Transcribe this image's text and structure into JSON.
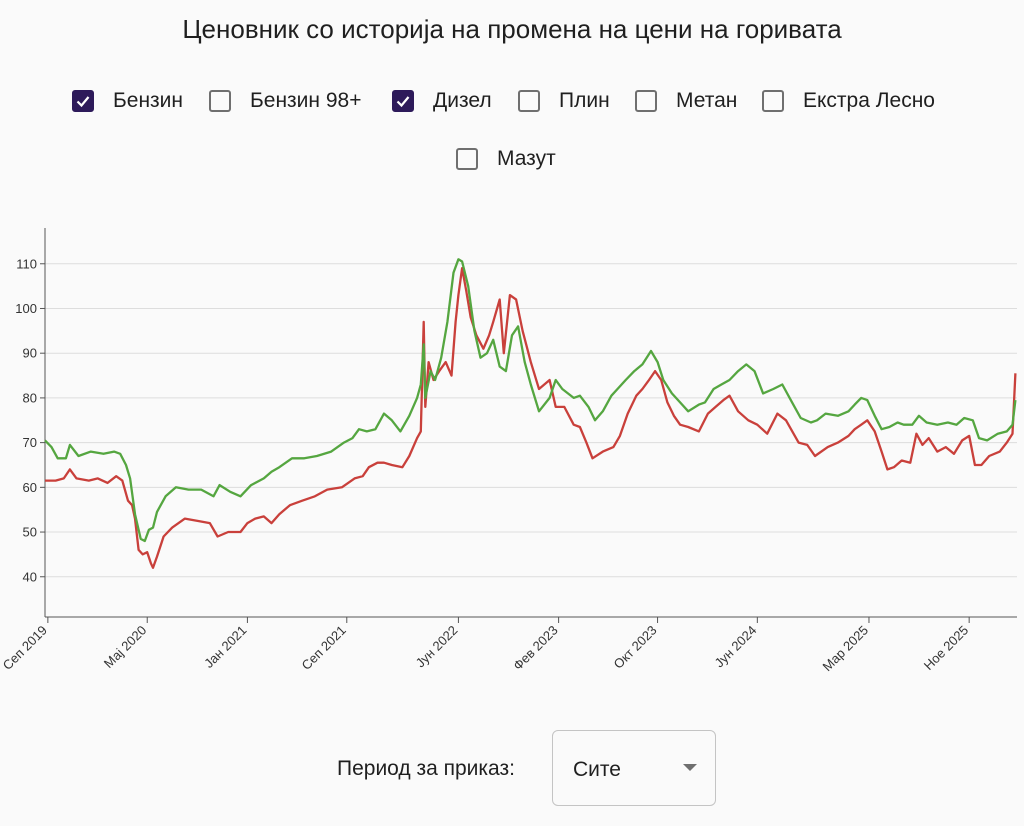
{
  "title": "Ценовник со историја на промена на цени на горивата",
  "filters": [
    {
      "label": "Бензин",
      "checked": true
    },
    {
      "label": "Бензин 98+",
      "checked": false
    },
    {
      "label": "Дизел",
      "checked": true
    },
    {
      "label": "Плин",
      "checked": false
    },
    {
      "label": "Метан",
      "checked": false
    },
    {
      "label": "Екстра Лесно",
      "checked": false
    },
    {
      "label": "Мазут",
      "checked": false
    }
  ],
  "period": {
    "label": "Период за приказ:",
    "selected": "Сите"
  },
  "colors": {
    "benzin": "#c9403b",
    "dizel": "#55a640",
    "checkbox_checked": "#2d1a5a"
  },
  "chart_data": {
    "type": "line",
    "title": "",
    "xlabel": "",
    "ylabel": "",
    "ylim": [
      31,
      118
    ],
    "yticks": [
      40,
      50,
      60,
      70,
      80,
      90,
      100,
      110
    ],
    "grid": "horizontal",
    "xtick_labels": [
      {
        "date": "2019-09-01",
        "label": "Сеп 2019"
      },
      {
        "date": "2020-05-01",
        "label": "Мај 2020"
      },
      {
        "date": "2021-01-01",
        "label": "Јан 2021"
      },
      {
        "date": "2021-09-01",
        "label": "Сеп 2021"
      },
      {
        "date": "2022-06-01",
        "label": "Јун 2022"
      },
      {
        "date": "2023-02-01",
        "label": "Фев 2023"
      },
      {
        "date": "2023-10-01",
        "label": "Окт 2023"
      },
      {
        "date": "2024-06-01",
        "label": "Јун 2024"
      },
      {
        "date": "2025-03-01",
        "label": "Мар 2025"
      },
      {
        "date": "2025-11-01",
        "label": "Ное 2025"
      }
    ],
    "series": [
      {
        "name": "Бензин",
        "color": "#c9403b",
        "points": [
          [
            "2019-08-25",
            61.5
          ],
          [
            "2019-09-20",
            61.5
          ],
          [
            "2019-10-10",
            62.0
          ],
          [
            "2019-10-25",
            64.0
          ],
          [
            "2019-11-10",
            62.0
          ],
          [
            "2019-12-10",
            61.5
          ],
          [
            "2020-01-01",
            62.0
          ],
          [
            "2020-01-25",
            61.0
          ],
          [
            "2020-02-15",
            62.5
          ],
          [
            "2020-03-01",
            61.5
          ],
          [
            "2020-03-15",
            57.0
          ],
          [
            "2020-03-25",
            56.0
          ],
          [
            "2020-04-01",
            53.0
          ],
          [
            "2020-04-10",
            46.0
          ],
          [
            "2020-04-20",
            45.0
          ],
          [
            "2020-05-01",
            45.5
          ],
          [
            "2020-05-10",
            43.0
          ],
          [
            "2020-05-15",
            42.0
          ],
          [
            "2020-05-25",
            44.5
          ],
          [
            "2020-06-10",
            49.0
          ],
          [
            "2020-07-01",
            51.0
          ],
          [
            "2020-08-01",
            53.0
          ],
          [
            "2020-09-01",
            52.5
          ],
          [
            "2020-10-01",
            52.0
          ],
          [
            "2020-10-20",
            49.0
          ],
          [
            "2020-11-15",
            50.0
          ],
          [
            "2020-12-15",
            50.0
          ],
          [
            "2021-01-01",
            52.0
          ],
          [
            "2021-01-20",
            53.0
          ],
          [
            "2021-02-10",
            53.5
          ],
          [
            "2021-03-01",
            52.0
          ],
          [
            "2021-03-20",
            54.0
          ],
          [
            "2021-04-15",
            56.0
          ],
          [
            "2021-05-15",
            57.0
          ],
          [
            "2021-06-15",
            58.0
          ],
          [
            "2021-07-15",
            59.5
          ],
          [
            "2021-08-20",
            60.0
          ],
          [
            "2021-09-20",
            62.0
          ],
          [
            "2021-10-10",
            62.5
          ],
          [
            "2021-10-25",
            64.5
          ],
          [
            "2021-11-15",
            65.5
          ],
          [
            "2021-12-01",
            65.5
          ],
          [
            "2021-12-20",
            65.0
          ],
          [
            "2022-01-15",
            64.5
          ],
          [
            "2022-02-01",
            67.0
          ],
          [
            "2022-02-20",
            71.0
          ],
          [
            "2022-03-01",
            72.5
          ],
          [
            "2022-03-08",
            97.0
          ],
          [
            "2022-03-12",
            78.0
          ],
          [
            "2022-03-20",
            88.0
          ],
          [
            "2022-04-01",
            84.0
          ],
          [
            "2022-04-15",
            86.0
          ],
          [
            "2022-05-01",
            88.0
          ],
          [
            "2022-05-15",
            85.0
          ],
          [
            "2022-05-25",
            97.0
          ],
          [
            "2022-06-01",
            103.0
          ],
          [
            "2022-06-10",
            109.0
          ],
          [
            "2022-06-20",
            104.0
          ],
          [
            "2022-07-01",
            98.0
          ],
          [
            "2022-07-15",
            94.0
          ],
          [
            "2022-08-01",
            91.0
          ],
          [
            "2022-08-15",
            94.0
          ],
          [
            "2022-08-25",
            97.0
          ],
          [
            "2022-09-10",
            102.0
          ],
          [
            "2022-09-20",
            90.0
          ],
          [
            "2022-10-05",
            103.0
          ],
          [
            "2022-10-20",
            102.0
          ],
          [
            "2022-11-05",
            95.0
          ],
          [
            "2022-11-25",
            88.0
          ],
          [
            "2022-12-15",
            82.0
          ],
          [
            "2023-01-10",
            84.0
          ],
          [
            "2023-01-25",
            78.0
          ],
          [
            "2023-02-15",
            78.0
          ],
          [
            "2023-03-10",
            74.0
          ],
          [
            "2023-03-25",
            73.5
          ],
          [
            "2023-04-10",
            70.0
          ],
          [
            "2023-04-25",
            66.5
          ],
          [
            "2023-05-20",
            68.0
          ],
          [
            "2023-06-15",
            69.0
          ],
          [
            "2023-07-01",
            71.5
          ],
          [
            "2023-07-20",
            76.5
          ],
          [
            "2023-08-10",
            80.5
          ],
          [
            "2023-08-25",
            82.0
          ],
          [
            "2023-09-10",
            84.0
          ],
          [
            "2023-09-25",
            86.0
          ],
          [
            "2023-10-10",
            84.0
          ],
          [
            "2023-10-25",
            79.0
          ],
          [
            "2023-11-10",
            76.0
          ],
          [
            "2023-11-25",
            74.0
          ],
          [
            "2023-12-15",
            73.5
          ],
          [
            "2024-01-10",
            72.5
          ],
          [
            "2024-02-01",
            76.5
          ],
          [
            "2024-02-20",
            78.0
          ],
          [
            "2024-03-10",
            79.5
          ],
          [
            "2024-03-25",
            80.5
          ],
          [
            "2024-04-15",
            77.0
          ],
          [
            "2024-05-10",
            75.0
          ],
          [
            "2024-06-01",
            74.0
          ],
          [
            "2024-06-25",
            72.0
          ],
          [
            "2024-07-20",
            76.5
          ],
          [
            "2024-08-10",
            75.0
          ],
          [
            "2024-09-10",
            70.0
          ],
          [
            "2024-10-01",
            69.5
          ],
          [
            "2024-10-20",
            67.0
          ],
          [
            "2024-11-20",
            69.0
          ],
          [
            "2024-12-15",
            70.0
          ],
          [
            "2025-01-10",
            71.5
          ],
          [
            "2025-01-25",
            73.0
          ],
          [
            "2025-02-10",
            74.0
          ],
          [
            "2025-02-25",
            75.0
          ],
          [
            "2025-03-15",
            72.5
          ],
          [
            "2025-04-01",
            68.0
          ],
          [
            "2025-04-15",
            64.0
          ],
          [
            "2025-05-01",
            64.5
          ],
          [
            "2025-05-20",
            66.0
          ],
          [
            "2025-06-10",
            65.5
          ],
          [
            "2025-06-25",
            72.0
          ],
          [
            "2025-07-10",
            69.5
          ],
          [
            "2025-07-25",
            71.0
          ],
          [
            "2025-08-15",
            68.0
          ],
          [
            "2025-09-05",
            69.0
          ],
          [
            "2025-09-25",
            67.5
          ],
          [
            "2025-10-15",
            70.5
          ],
          [
            "2025-11-01",
            71.5
          ],
          [
            "2025-11-15",
            65.0
          ],
          [
            "2025-12-01",
            65.0
          ],
          [
            "2025-12-20",
            67.0
          ],
          [
            "2026-01-15",
            68.0
          ],
          [
            "2026-02-01",
            70.0
          ],
          [
            "2026-02-15",
            72.0
          ],
          [
            "2026-02-22",
            85.5
          ]
        ]
      },
      {
        "name": "Дизел",
        "color": "#55a640",
        "points": [
          [
            "2019-08-25",
            70.5
          ],
          [
            "2019-09-10",
            69.0
          ],
          [
            "2019-09-25",
            66.5
          ],
          [
            "2019-10-15",
            66.5
          ],
          [
            "2019-10-25",
            69.5
          ],
          [
            "2019-11-15",
            67.0
          ],
          [
            "2019-12-15",
            68.0
          ],
          [
            "2020-01-15",
            67.5
          ],
          [
            "2020-02-10",
            68.0
          ],
          [
            "2020-02-25",
            67.5
          ],
          [
            "2020-03-10",
            65.0
          ],
          [
            "2020-03-20",
            62.0
          ],
          [
            "2020-04-01",
            54.0
          ],
          [
            "2020-04-15",
            48.5
          ],
          [
            "2020-04-25",
            48.0
          ],
          [
            "2020-05-05",
            50.5
          ],
          [
            "2020-05-15",
            51.0
          ],
          [
            "2020-05-25",
            54.5
          ],
          [
            "2020-06-15",
            58.0
          ],
          [
            "2020-07-10",
            60.0
          ],
          [
            "2020-08-10",
            59.5
          ],
          [
            "2020-09-10",
            59.5
          ],
          [
            "2020-10-10",
            58.0
          ],
          [
            "2020-10-25",
            60.5
          ],
          [
            "2020-11-20",
            59.0
          ],
          [
            "2020-12-15",
            58.0
          ],
          [
            "2021-01-10",
            60.5
          ],
          [
            "2021-02-10",
            62.0
          ],
          [
            "2021-03-01",
            63.5
          ],
          [
            "2021-03-20",
            64.5
          ],
          [
            "2021-04-20",
            66.5
          ],
          [
            "2021-05-20",
            66.5
          ],
          [
            "2021-06-20",
            67.0
          ],
          [
            "2021-07-25",
            68.0
          ],
          [
            "2021-08-25",
            70.0
          ],
          [
            "2021-09-15",
            71.0
          ],
          [
            "2021-10-01",
            73.0
          ],
          [
            "2021-10-20",
            72.5
          ],
          [
            "2021-11-10",
            73.0
          ],
          [
            "2021-12-01",
            76.5
          ],
          [
            "2021-12-20",
            75.0
          ],
          [
            "2022-01-10",
            72.5
          ],
          [
            "2022-02-01",
            76.0
          ],
          [
            "2022-02-20",
            80.0
          ],
          [
            "2022-03-01",
            83.0
          ],
          [
            "2022-03-08",
            92.0
          ],
          [
            "2022-03-12",
            80.0
          ],
          [
            "2022-03-25",
            86.0
          ],
          [
            "2022-04-05",
            84.0
          ],
          [
            "2022-04-20",
            89.0
          ],
          [
            "2022-05-05",
            97.0
          ],
          [
            "2022-05-20",
            108.0
          ],
          [
            "2022-06-01",
            111.0
          ],
          [
            "2022-06-10",
            110.5
          ],
          [
            "2022-06-25",
            105.0
          ],
          [
            "2022-07-10",
            95.0
          ],
          [
            "2022-07-25",
            89.0
          ],
          [
            "2022-08-10",
            90.0
          ],
          [
            "2022-08-25",
            93.0
          ],
          [
            "2022-09-10",
            87.0
          ],
          [
            "2022-09-25",
            86.0
          ],
          [
            "2022-10-10",
            94.0
          ],
          [
            "2022-10-25",
            96.0
          ],
          [
            "2022-11-10",
            88.0
          ],
          [
            "2022-11-25",
            83.0
          ],
          [
            "2022-12-15",
            77.0
          ],
          [
            "2023-01-10",
            80.0
          ],
          [
            "2023-01-25",
            84.0
          ],
          [
            "2023-02-10",
            82.0
          ],
          [
            "2023-03-10",
            80.0
          ],
          [
            "2023-03-25",
            80.5
          ],
          [
            "2023-04-15",
            78.0
          ],
          [
            "2023-05-01",
            75.0
          ],
          [
            "2023-05-20",
            77.0
          ],
          [
            "2023-06-10",
            80.5
          ],
          [
            "2023-06-25",
            82.0
          ],
          [
            "2023-07-15",
            84.0
          ],
          [
            "2023-08-05",
            86.0
          ],
          [
            "2023-08-25",
            87.5
          ],
          [
            "2023-09-15",
            90.5
          ],
          [
            "2023-10-01",
            88.0
          ],
          [
            "2023-10-15",
            84.0
          ],
          [
            "2023-11-05",
            81.0
          ],
          [
            "2023-11-25",
            79.0
          ],
          [
            "2023-12-15",
            77.0
          ],
          [
            "2024-01-10",
            78.5
          ],
          [
            "2024-01-25",
            79.0
          ],
          [
            "2024-02-15",
            82.0
          ],
          [
            "2024-03-05",
            83.0
          ],
          [
            "2024-03-25",
            84.0
          ],
          [
            "2024-04-15",
            86.0
          ],
          [
            "2024-05-05",
            87.5
          ],
          [
            "2024-05-25",
            86.0
          ],
          [
            "2024-06-15",
            81.0
          ],
          [
            "2024-07-10",
            82.0
          ],
          [
            "2024-08-01",
            83.0
          ],
          [
            "2024-08-25",
            79.0
          ],
          [
            "2024-09-15",
            75.5
          ],
          [
            "2024-10-10",
            74.5
          ],
          [
            "2024-10-25",
            75.0
          ],
          [
            "2024-11-15",
            76.5
          ],
          [
            "2024-12-15",
            76.0
          ],
          [
            "2025-01-10",
            77.0
          ],
          [
            "2025-01-25",
            78.5
          ],
          [
            "2025-02-10",
            80.0
          ],
          [
            "2025-02-25",
            79.5
          ],
          [
            "2025-03-15",
            76.0
          ],
          [
            "2025-04-01",
            73.0
          ],
          [
            "2025-04-20",
            73.5
          ],
          [
            "2025-05-10",
            74.5
          ],
          [
            "2025-05-25",
            74.0
          ],
          [
            "2025-06-15",
            74.0
          ],
          [
            "2025-07-01",
            76.0
          ],
          [
            "2025-07-20",
            74.5
          ],
          [
            "2025-08-15",
            74.0
          ],
          [
            "2025-09-10",
            74.5
          ],
          [
            "2025-10-01",
            74.0
          ],
          [
            "2025-10-20",
            75.5
          ],
          [
            "2025-11-10",
            75.0
          ],
          [
            "2025-11-25",
            71.0
          ],
          [
            "2025-12-15",
            70.5
          ],
          [
            "2026-01-10",
            72.0
          ],
          [
            "2026-02-01",
            72.5
          ],
          [
            "2026-02-15",
            74.0
          ],
          [
            "2026-02-22",
            79.5
          ]
        ]
      }
    ]
  }
}
